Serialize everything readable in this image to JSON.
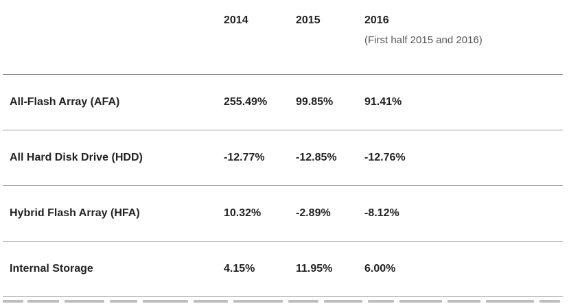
{
  "table": {
    "columns": {
      "y2014": "2014",
      "y2015": "2015",
      "y2016": "2016",
      "note": "(First half 2015 and 2016)"
    },
    "rows": [
      {
        "label": "All-Flash Array (AFA)",
        "y2014": "255.49%",
        "y2015": "99.85%",
        "y2016": "91.41%"
      },
      {
        "label": "All Hard Disk Drive (HDD)",
        "y2014": "-12.77%",
        "y2015": "-12.85%",
        "y2016": "-12.76%"
      },
      {
        "label": "Hybrid Flash Array (HFA)",
        "y2014": "10.32%",
        "y2015": "-2.89%",
        "y2016": "-8.12%"
      },
      {
        "label": "Internal Storage",
        "y2014": "4.15%",
        "y2015": "11.95%",
        "y2016": "6.00%"
      }
    ]
  }
}
